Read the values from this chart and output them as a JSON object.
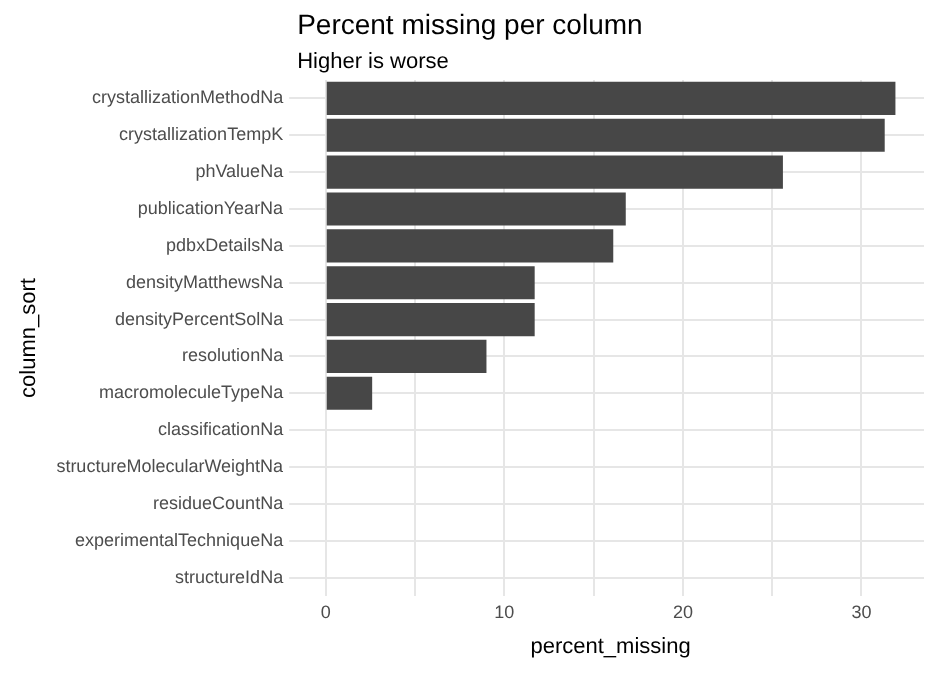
{
  "chart_data": {
    "type": "bar",
    "orientation": "horizontal",
    "title": "Percent missing per column",
    "subtitle": "Higher is worse",
    "xlabel": "percent_missing",
    "ylabel": "column_sort",
    "categories": [
      "crystallizationMethodNa",
      "crystallizationTempK",
      "phValueNa",
      "publicationYearNa",
      "pdbxDetailsNa",
      "densityMatthewsNa",
      "densityPercentSolNa",
      "resolutionNa",
      "macromoleculeTypeNa",
      "classificationNa",
      "structureMolecularWeightNa",
      "residueCountNa",
      "experimentalTechniqueNa",
      "structureIdNa"
    ],
    "values": [
      31.9,
      31.3,
      25.6,
      16.8,
      16.1,
      11.7,
      11.7,
      9.0,
      2.6,
      0,
      0,
      0,
      0,
      0
    ],
    "color": "#474747",
    "xlim": [
      -1.6,
      33.5
    ],
    "xticks": [
      0,
      {
        "value": 5,
        "label": null
      },
      10,
      {
        "value": 15,
        "label": null
      },
      20,
      {
        "value": 25,
        "label": null
      },
      30
    ],
    "grid": true,
    "legend": false
  }
}
